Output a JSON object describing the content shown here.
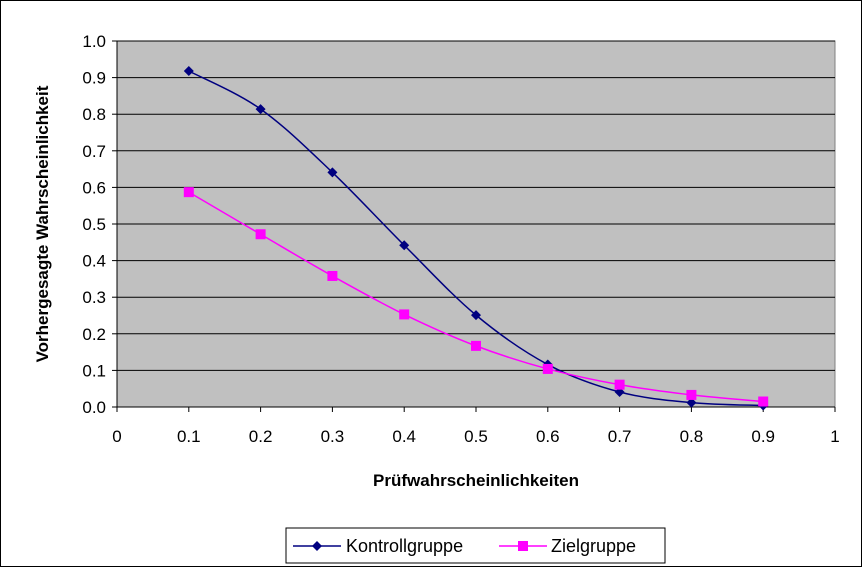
{
  "chart_data": {
    "type": "line",
    "title": "",
    "xlabel": "Prüfwahrscheinlichkeiten",
    "ylabel": "Vorhergesagte Wahrscheinlichkeit",
    "xlim": [
      0,
      1
    ],
    "ylim": [
      0,
      1
    ],
    "x_ticks": [
      "0",
      "0.1",
      "0.2",
      "0.3",
      "0.4",
      "0.5",
      "0.6",
      "0.7",
      "0.8",
      "0.9",
      "1"
    ],
    "y_ticks": [
      "0.0",
      "0.1",
      "0.2",
      "0.3",
      "0.4",
      "0.5",
      "0.6",
      "0.7",
      "0.8",
      "0.9",
      "1.0"
    ],
    "grid": true,
    "plot_background": "#c0c0c0",
    "legend_position": "bottom",
    "series": [
      {
        "name": "Kontrollgruppe",
        "color": "#000080",
        "marker": "diamond",
        "x": [
          0.1,
          0.2,
          0.3,
          0.4,
          0.5,
          0.6,
          0.7,
          0.8,
          0.9
        ],
        "values": [
          0.918,
          0.814,
          0.641,
          0.442,
          0.251,
          0.116,
          0.041,
          0.012,
          0.004
        ]
      },
      {
        "name": "Zielgruppe",
        "color": "#ff00ff",
        "marker": "square",
        "x": [
          0.1,
          0.2,
          0.3,
          0.4,
          0.5,
          0.6,
          0.7,
          0.8,
          0.9
        ],
        "values": [
          0.587,
          0.472,
          0.358,
          0.253,
          0.167,
          0.104,
          0.061,
          0.033,
          0.015
        ]
      }
    ]
  }
}
